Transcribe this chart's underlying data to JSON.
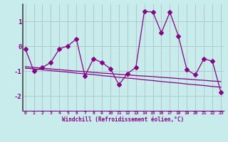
{
  "x": [
    0,
    1,
    2,
    3,
    4,
    5,
    6,
    7,
    8,
    9,
    10,
    11,
    12,
    13,
    14,
    15,
    16,
    17,
    18,
    19,
    20,
    21,
    22,
    23
  ],
  "y_main": [
    -0.1,
    -1.0,
    -0.85,
    -0.65,
    -0.1,
    0.02,
    0.3,
    -1.2,
    -0.5,
    -0.65,
    -0.9,
    -1.55,
    -1.1,
    -0.85,
    1.42,
    1.38,
    0.55,
    1.38,
    0.42,
    -0.95,
    -1.15,
    -0.5,
    -0.6,
    -1.85
  ],
  "y_trend_upper": [
    -0.82,
    -0.85,
    -0.88,
    -0.91,
    -0.94,
    -0.97,
    -1.0,
    -1.02,
    -1.05,
    -1.08,
    -1.1,
    -1.13,
    -1.15,
    -1.18,
    -1.2,
    -1.22,
    -1.25,
    -1.27,
    -1.3,
    -1.32,
    -1.35,
    -1.37,
    -1.4,
    -1.42
  ],
  "y_trend_lower": [
    -0.88,
    -0.91,
    -0.94,
    -0.98,
    -1.01,
    -1.04,
    -1.08,
    -1.11,
    -1.14,
    -1.18,
    -1.21,
    -1.25,
    -1.28,
    -1.31,
    -1.35,
    -1.38,
    -1.42,
    -1.45,
    -1.48,
    -1.52,
    -1.55,
    -1.58,
    -1.62,
    -1.65
  ],
  "line_color": "#880088",
  "bg_color": "#c8ecec",
  "grid_color": "#b0c8c8",
  "xlabel": "Windchill (Refroidissement éolien,°C)",
  "xticks": [
    0,
    1,
    2,
    3,
    4,
    5,
    6,
    7,
    8,
    9,
    10,
    11,
    12,
    13,
    14,
    15,
    16,
    17,
    18,
    19,
    20,
    21,
    22,
    23
  ],
  "yticks": [
    -2,
    -1,
    0,
    1
  ],
  "ylim": [
    -2.6,
    1.7
  ],
  "xlim": [
    -0.3,
    23.3
  ],
  "markersize": 3.0,
  "linewidth": 0.9
}
